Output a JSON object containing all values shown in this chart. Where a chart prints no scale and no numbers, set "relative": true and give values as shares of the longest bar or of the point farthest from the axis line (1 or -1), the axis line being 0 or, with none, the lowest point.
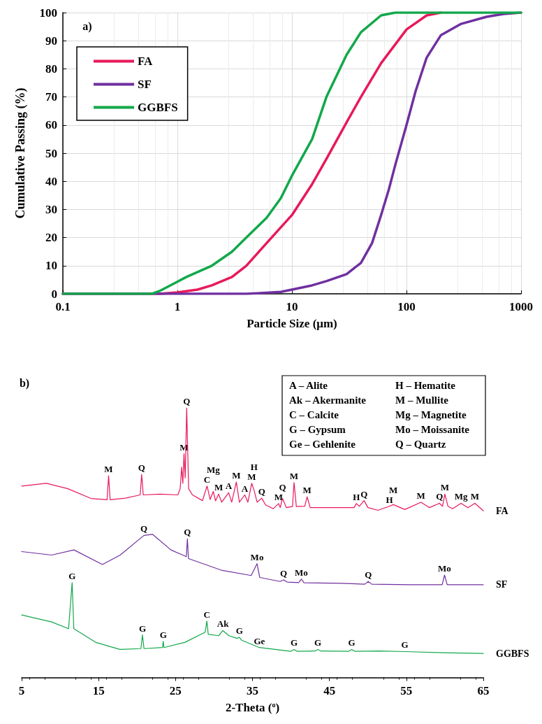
{
  "chart_data": [
    {
      "type": "line",
      "xlabel": "Particle Size (μm)",
      "ylabel": "Cumulative Passing (%)",
      "annotations": [
        "a)"
      ],
      "log": "x",
      "xlim": [
        0.1,
        1000
      ],
      "xticks": [
        0.1,
        1,
        10,
        100,
        1000
      ],
      "ylim": [
        0,
        100
      ],
      "yticks": [
        0,
        10,
        20,
        30,
        40,
        50,
        60,
        70,
        80,
        90,
        100
      ],
      "grid": true,
      "legend": "top left",
      "marker": "none",
      "series": [
        {
          "name": "FA",
          "color": "#e8195a",
          "x": [
            0.1,
            0.7,
            1,
            1.5,
            2,
            3,
            4,
            6,
            10,
            15,
            20,
            30,
            40,
            60,
            100,
            150,
            200
          ],
          "values": [
            0,
            0,
            0.5,
            1.5,
            3,
            6,
            10,
            18,
            28,
            39,
            48,
            61,
            70,
            82,
            94,
            99,
            100
          ]
        },
        {
          "name": "SF",
          "color": "#7030a0",
          "x": [
            0.1,
            4,
            5,
            8,
            10,
            15,
            20,
            30,
            40,
            50,
            60,
            70,
            80,
            100,
            120,
            150,
            200,
            300,
            500,
            700,
            1000
          ],
          "values": [
            0,
            0,
            0.2,
            0.7,
            1.5,
            3,
            4.5,
            7,
            11,
            18,
            28,
            37,
            46,
            60,
            72,
            84,
            92,
            96,
            98.5,
            99.5,
            100
          ]
        },
        {
          "name": "GGBFS",
          "color": "#12a84a",
          "x": [
            0.1,
            0.6,
            0.7,
            1,
            1.2,
            2,
            3,
            4,
            6,
            8,
            10,
            15,
            20,
            30,
            40,
            60,
            80,
            1000
          ],
          "values": [
            0,
            0,
            1,
            4.3,
            6,
            10,
            15,
            20,
            27,
            34,
            42,
            55,
            70,
            85,
            93,
            99,
            100,
            100
          ]
        }
      ]
    },
    {
      "type": "line",
      "relative": true,
      "xlabel": "2-Theta ($^{o}$)",
      "xlim": [
        5,
        65
      ],
      "xticks": [
        5,
        15,
        25,
        35,
        45,
        55,
        65
      ],
      "marker": "none",
      "annotations": [
        "b)",
        "A – Alite",
        "Ak – Akermanite",
        "C – Calcite",
        "G – Gypsum",
        "Ge – Gehlenite",
        "H – Hematite",
        "M – Mullite",
        "Mg – Magnetite",
        "Mo – Moissanite",
        "Q – Quartz",
        {
          "text": "M",
          "x": 16.3,
          "y": 0.748
        },
        {
          "text": "Q",
          "x": 20.6,
          "y": 0.753
        },
        {
          "text": "M",
          "x": 26.1,
          "y": 0.83
        },
        {
          "text": "Q",
          "x": 26.45,
          "y": 1.0
        },
        {
          "text": "C",
          "x": 29.1,
          "y": 0.71
        },
        {
          "text": "Mg",
          "x": 29.9,
          "y": 0.69
        },
        {
          "text": "M",
          "x": 30.6,
          "y": 0.68
        },
        {
          "text": "A",
          "x": 31.9,
          "y": 0.685
        },
        {
          "text": "M",
          "x": 32.9,
          "y": 0.725
        },
        {
          "text": "A",
          "x": 34.0,
          "y": 0.677
        },
        {
          "text": "M",
          "x": 34.9,
          "y": 0.72
        },
        {
          "text": "H",
          "x": 35.2,
          "y": 0.695
        },
        {
          "text": "Q",
          "x": 36.2,
          "y": 0.665
        },
        {
          "text": "M",
          "x": 38.4,
          "y": 0.645
        },
        {
          "text": "Q",
          "x": 38.9,
          "y": 0.664
        },
        {
          "text": "M",
          "x": 40.4,
          "y": 0.723
        },
        {
          "text": "M",
          "x": 42.1,
          "y": 0.67
        },
        {
          "text": "H",
          "x": 48.5,
          "y": 0.645
        },
        {
          "text": "Q",
          "x": 49.5,
          "y": 0.656
        },
        {
          "text": "H",
          "x": 52.8,
          "y": 0.635
        },
        {
          "text": "M",
          "x": 53.3,
          "y": 0.641
        },
        {
          "text": "M",
          "x": 56.9,
          "y": 0.65
        },
        {
          "text": "Q",
          "x": 59.3,
          "y": 0.646
        },
        {
          "text": "M",
          "x": 60.0,
          "y": 0.68
        },
        {
          "text": "Mg",
          "x": 62.1,
          "y": 0.646
        },
        {
          "text": "M",
          "x": 63.9,
          "y": 0.646
        },
        {
          "text": "Q",
          "x": 20.9,
          "y": 0.527
        },
        {
          "text": "Q",
          "x": 26.54,
          "y": 0.514
        },
        {
          "text": "Mo",
          "x": 35.59,
          "y": 0.422
        },
        {
          "text": "Q",
          "x": 39.04,
          "y": 0.362
        },
        {
          "text": "Mo",
          "x": 41.35,
          "y": 0.365
        },
        {
          "text": "Q",
          "x": 50.04,
          "y": 0.356
        },
        {
          "text": "Mo",
          "x": 59.96,
          "y": 0.38
        },
        {
          "text": "G",
          "x": 11.56,
          "y": 0.352
        },
        {
          "text": "G",
          "x": 20.7,
          "y": 0.158
        },
        {
          "text": "G",
          "x": 23.4,
          "y": 0.134
        },
        {
          "text": "C",
          "x": 29.07,
          "y": 0.209
        },
        {
          "text": "Ak",
          "x": 31.15,
          "y": 0.174
        },
        {
          "text": "G",
          "x": 33.3,
          "y": 0.149
        },
        {
          "text": "Ge",
          "x": 35.9,
          "y": 0.111
        },
        {
          "text": "G",
          "x": 40.4,
          "y": 0.104
        },
        {
          "text": "G",
          "x": 43.5,
          "y": 0.104
        },
        {
          "text": "G",
          "x": 47.9,
          "y": 0.104
        },
        {
          "text": "G",
          "x": 54.8,
          "y": 0.096
        }
      ],
      "series": [
        {
          "name": "FA",
          "color": "#e8195a",
          "x": [
            5,
            8.2,
            11,
            14,
            16.1,
            16.3,
            16.5,
            18.5,
            20.4,
            20.6,
            20.8,
            23,
            25.3,
            25.6,
            25.8,
            25.95,
            26.1,
            26.25,
            26.45,
            26.7,
            27.2,
            28.5,
            29.1,
            29.5,
            29.9,
            30.2,
            30.6,
            31,
            31.9,
            32.3,
            32.9,
            33.3,
            34.0,
            34.4,
            34.9,
            35.2,
            35.6,
            36.2,
            36.7,
            37.7,
            38.4,
            38.6,
            38.9,
            39.4,
            40.2,
            40.4,
            40.7,
            41.8,
            42.1,
            42.5,
            44.8,
            48.2,
            48.5,
            48.9,
            49.5,
            50,
            51.3,
            52.8,
            53.3,
            54.8,
            56.9,
            58,
            59.3,
            59.7,
            60.0,
            60.4,
            61,
            62.1,
            63,
            63.9,
            65
          ],
          "values": [
            0.71,
            0.72,
            0.7,
            0.664,
            0.659,
            0.748,
            0.659,
            0.665,
            0.677,
            0.753,
            0.677,
            0.68,
            0.677,
            0.7,
            0.78,
            0.72,
            0.83,
            0.74,
            1.0,
            0.7,
            0.677,
            0.656,
            0.71,
            0.66,
            0.69,
            0.655,
            0.68,
            0.65,
            0.685,
            0.65,
            0.725,
            0.65,
            0.677,
            0.65,
            0.72,
            0.695,
            0.65,
            0.665,
            0.64,
            0.626,
            0.645,
            0.63,
            0.664,
            0.63,
            0.634,
            0.723,
            0.634,
            0.635,
            0.67,
            0.63,
            0.63,
            0.63,
            0.645,
            0.635,
            0.656,
            0.63,
            0.62,
            0.635,
            0.641,
            0.623,
            0.65,
            0.63,
            0.646,
            0.635,
            0.68,
            0.635,
            0.626,
            0.646,
            0.63,
            0.646,
            0.618
          ]
        },
        {
          "name": "SF",
          "color": "#7030a0",
          "x": [
            5,
            8.9,
            11.8,
            15.5,
            17.8,
            20.9,
            22.0,
            24.4,
            26.4,
            26.54,
            26.68,
            31.06,
            34.83,
            35.59,
            35.94,
            38.6,
            39.04,
            39.5,
            41.0,
            41.35,
            41.7,
            46.58,
            49.6,
            50.04,
            50.5,
            55.44,
            59.65,
            59.96,
            60.3,
            65
          ],
          "values": [
            0.467,
            0.454,
            0.473,
            0.419,
            0.454,
            0.527,
            0.531,
            0.473,
            0.448,
            0.514,
            0.441,
            0.397,
            0.378,
            0.422,
            0.371,
            0.356,
            0.362,
            0.354,
            0.352,
            0.365,
            0.351,
            0.349,
            0.346,
            0.356,
            0.346,
            0.344,
            0.344,
            0.38,
            0.344,
            0.344
          ]
        },
        {
          "name": "GGBFS",
          "color": "#12a84a",
          "x": [
            5,
            8.9,
            11.1,
            11.56,
            11.78,
            14.66,
            17.77,
            20.5,
            20.7,
            20.9,
            23.3,
            23.4,
            23.5,
            26.2,
            28.85,
            29.07,
            29.25,
            30.6,
            31.15,
            31.95,
            33.0,
            33.3,
            33.6,
            35.9,
            40.0,
            40.4,
            40.8,
            43.1,
            43.5,
            43.9,
            47.5,
            47.9,
            48.3,
            51.5,
            54.8,
            59.9,
            65
          ],
          "values": [
            0.232,
            0.206,
            0.181,
            0.352,
            0.181,
            0.13,
            0.104,
            0.107,
            0.158,
            0.107,
            0.111,
            0.134,
            0.111,
            0.13,
            0.168,
            0.209,
            0.16,
            0.155,
            0.174,
            0.155,
            0.145,
            0.149,
            0.138,
            0.111,
            0.097,
            0.104,
            0.097,
            0.098,
            0.104,
            0.098,
            0.097,
            0.104,
            0.097,
            0.098,
            0.096,
            0.092,
            0.089
          ]
        }
      ]
    }
  ]
}
